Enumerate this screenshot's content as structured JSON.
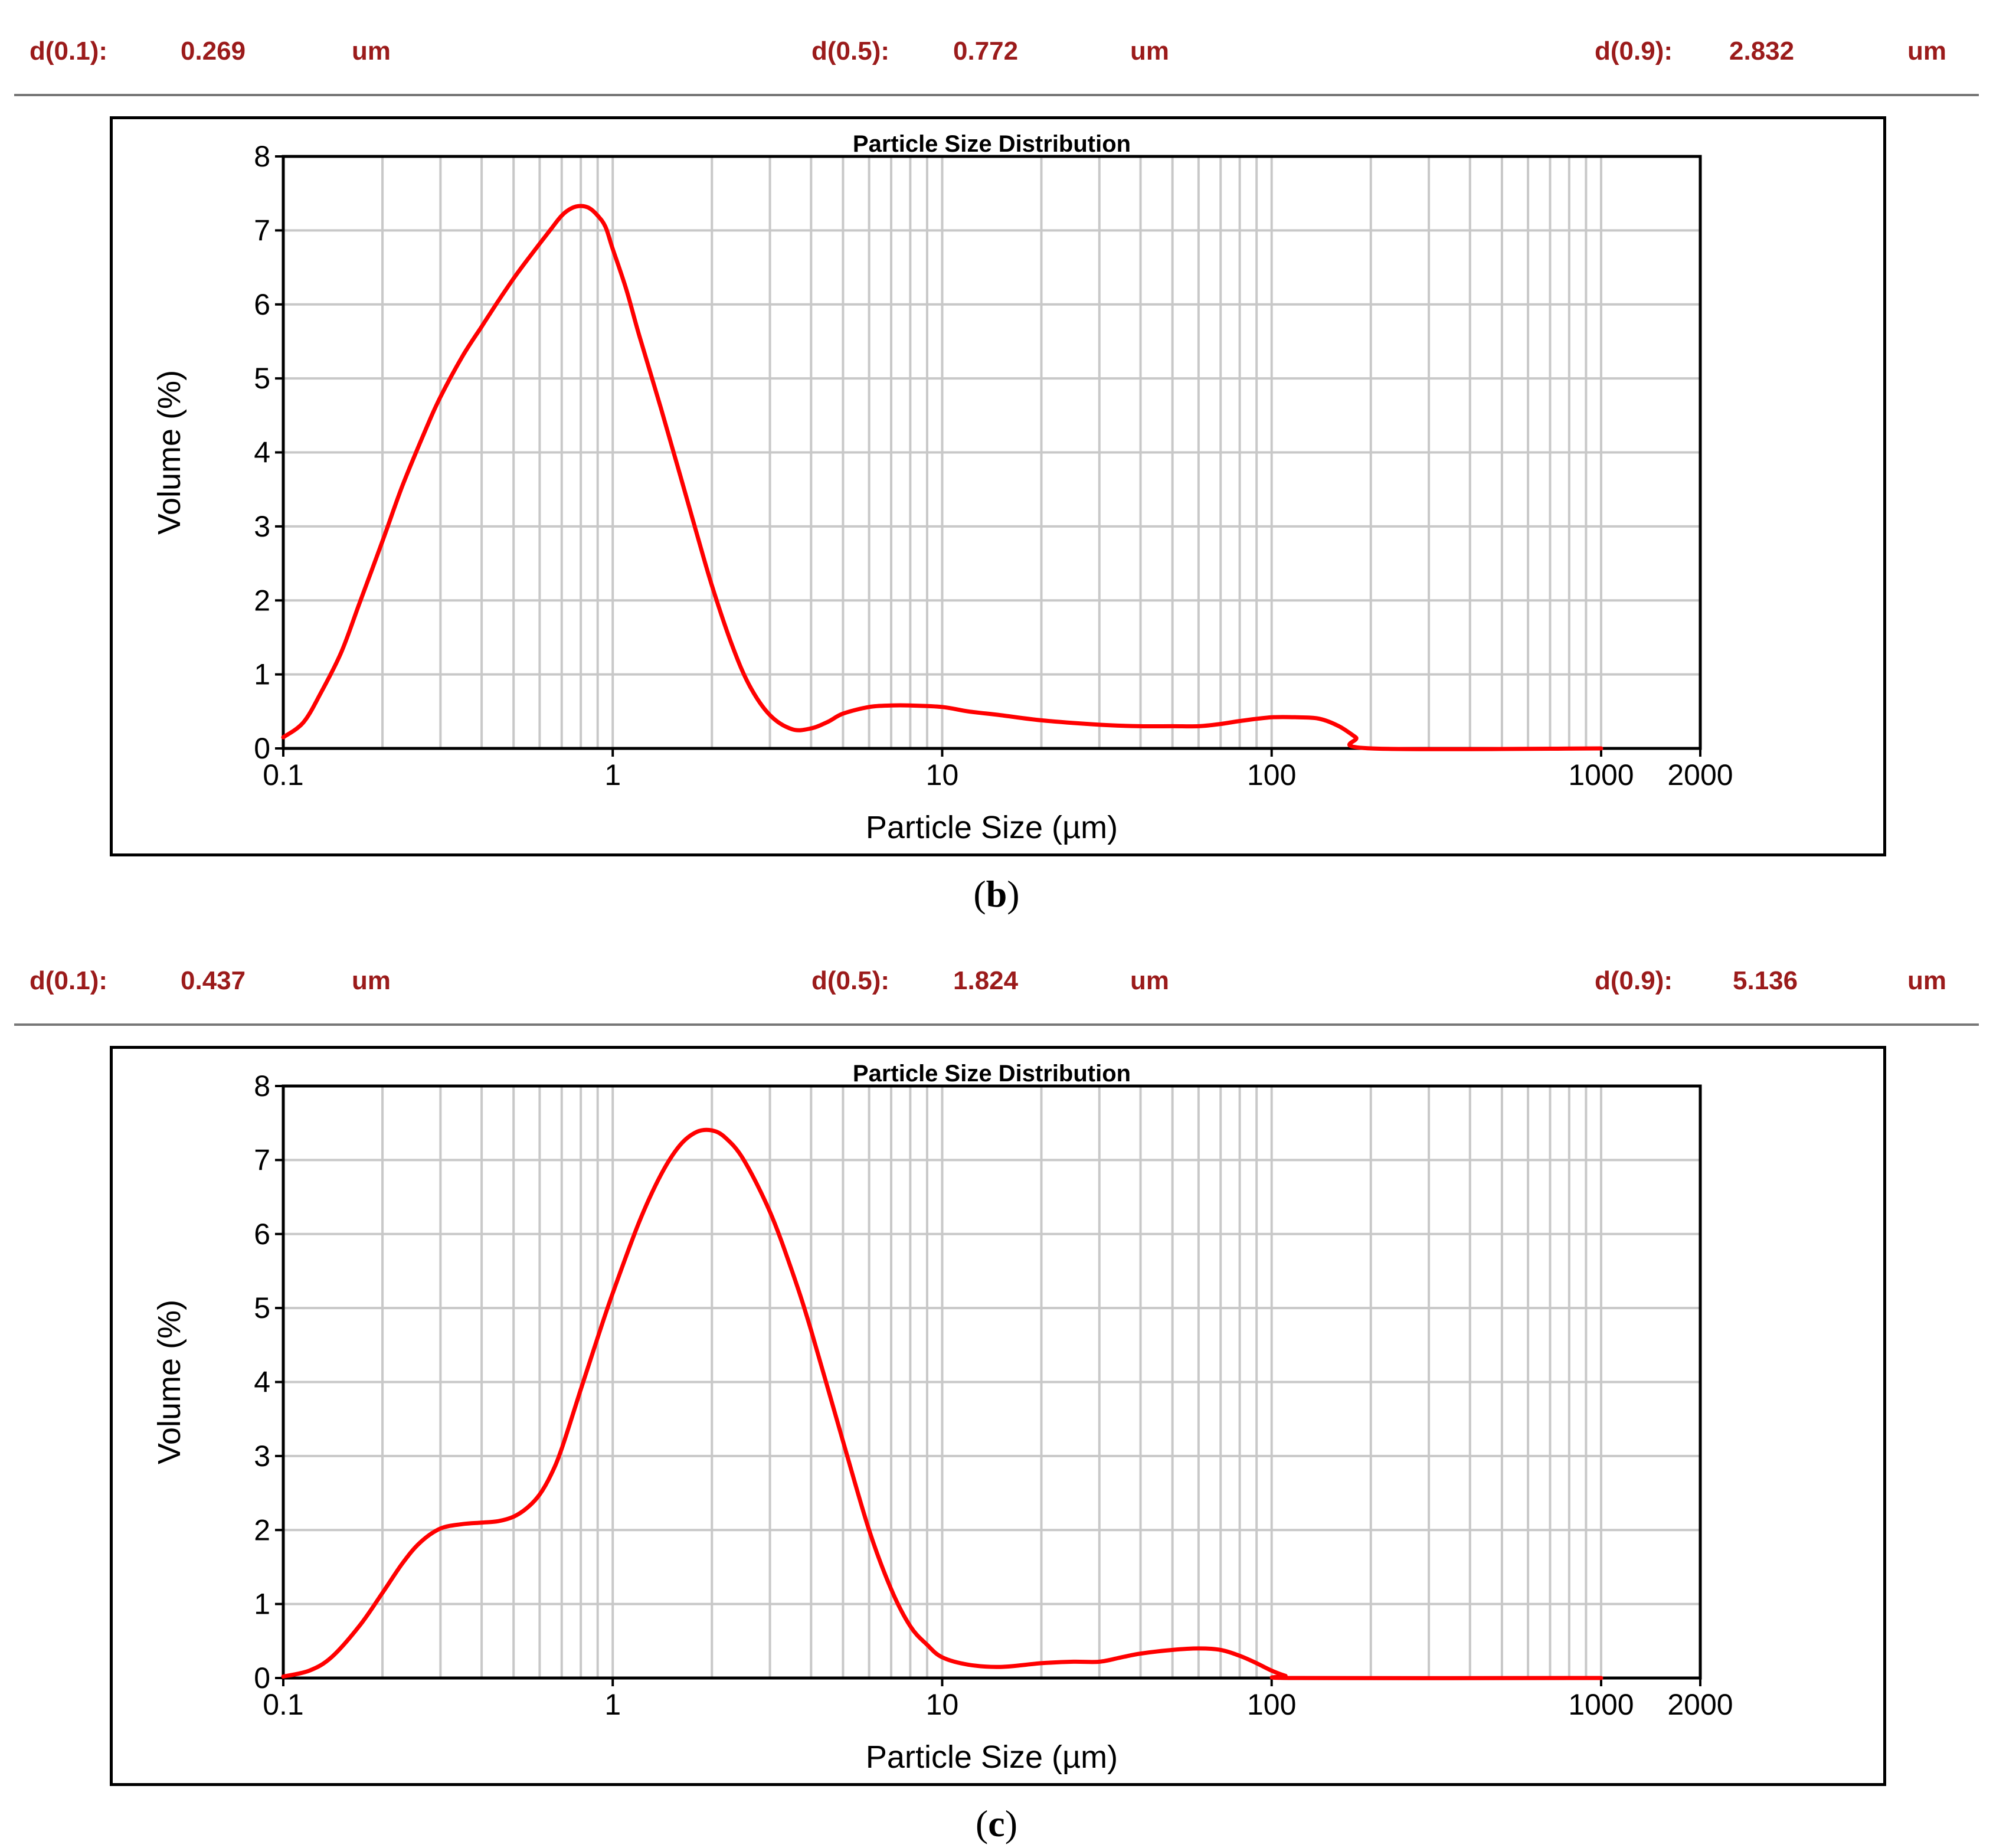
{
  "panels": [
    {
      "caption": {
        "open": "(",
        "letter": "b",
        "close": ")"
      },
      "stats": {
        "d10": {
          "label": "d(0.1):",
          "value": "0.269",
          "unit": "um"
        },
        "d50": {
          "label": "d(0.5):",
          "value": "0.772",
          "unit": "um"
        },
        "d90": {
          "label": "d(0.9):",
          "value": "2.832",
          "unit": "um"
        }
      }
    },
    {
      "caption": {
        "open": "(",
        "letter": "c",
        "close": ")"
      },
      "stats": {
        "d10": {
          "label": "d(0.1):",
          "value": "0.437",
          "unit": "um"
        },
        "d50": {
          "label": "d(0.5):",
          "value": "1.824",
          "unit": "um"
        },
        "d90": {
          "label": "d(0.9):",
          "value": "5.136",
          "unit": "um"
        }
      }
    }
  ],
  "colors": {
    "curve": "#ff0000",
    "stats_text": "#9b1b1b",
    "grid": "#c8c8c8",
    "axis": "#000000"
  },
  "chart_data": [
    {
      "type": "line",
      "title": "Particle Size Distribution",
      "xlabel": "Particle Size (µm)",
      "ylabel": "Volume (%)",
      "xscale": "log",
      "xlim": [
        0.1,
        2000
      ],
      "ylim": [
        0,
        8
      ],
      "x_ticks": [
        0.1,
        1,
        10,
        100,
        1000,
        2000
      ],
      "x_tick_labels": [
        "0.1",
        "1",
        "10",
        "100",
        "1000",
        "2000"
      ],
      "y_ticks": [
        0,
        1,
        2,
        3,
        4,
        5,
        6,
        7,
        8
      ],
      "y_tick_labels": [
        "0",
        "1",
        "2",
        "3",
        "4",
        "5",
        "6",
        "7",
        "8"
      ],
      "grid": true,
      "series": [
        {
          "name": "Volume",
          "x": [
            0.1,
            0.115,
            0.13,
            0.15,
            0.17,
            0.2,
            0.23,
            0.27,
            0.3,
            0.35,
            0.4,
            0.45,
            0.5,
            0.55,
            0.6,
            0.65,
            0.7,
            0.75,
            0.8,
            0.85,
            0.9,
            0.95,
            1.0,
            1.1,
            1.2,
            1.4,
            1.6,
            1.8,
            2.0,
            2.3,
            2.6,
            3.0,
            3.5,
            4.0,
            4.5,
            5.0,
            6.0,
            7.0,
            8.0,
            10.0,
            12.0,
            15.0,
            20.0,
            30.0,
            40.0,
            50.0,
            60.0,
            70.0,
            80.0,
            100.0,
            120.0,
            140.0,
            160.0,
            180.0,
            200.0,
            1000.0
          ],
          "y": [
            0.15,
            0.35,
            0.75,
            1.3,
            1.95,
            2.8,
            3.55,
            4.3,
            4.75,
            5.3,
            5.7,
            6.05,
            6.35,
            6.6,
            6.82,
            7.02,
            7.2,
            7.3,
            7.33,
            7.3,
            7.2,
            7.05,
            6.75,
            6.2,
            5.6,
            4.6,
            3.7,
            2.9,
            2.2,
            1.4,
            0.85,
            0.45,
            0.26,
            0.27,
            0.36,
            0.47,
            0.56,
            0.58,
            0.58,
            0.56,
            0.5,
            0.45,
            0.38,
            0.32,
            0.3,
            0.3,
            0.3,
            0.33,
            0.37,
            0.42,
            0.42,
            0.4,
            0.3,
            0.15,
            0.0,
            0.0
          ]
        }
      ]
    },
    {
      "type": "line",
      "title": "Particle Size Distribution",
      "xlabel": "Particle Size (µm)",
      "ylabel": "Volume (%)",
      "xscale": "log",
      "xlim": [
        0.1,
        2000
      ],
      "ylim": [
        0,
        8
      ],
      "x_ticks": [
        0.1,
        1,
        10,
        100,
        1000,
        2000
      ],
      "x_tick_labels": [
        "0.1",
        "1",
        "10",
        "100",
        "1000",
        "2000"
      ],
      "y_ticks": [
        0,
        1,
        2,
        3,
        4,
        5,
        6,
        7,
        8
      ],
      "y_tick_labels": [
        "0",
        "1",
        "2",
        "3",
        "4",
        "5",
        "6",
        "7",
        "8"
      ],
      "grid": true,
      "series": [
        {
          "name": "Volume",
          "x": [
            0.1,
            0.12,
            0.14,
            0.17,
            0.2,
            0.23,
            0.26,
            0.3,
            0.35,
            0.4,
            0.45,
            0.5,
            0.55,
            0.6,
            0.65,
            0.7,
            0.8,
            0.9,
            1.0,
            1.2,
            1.4,
            1.6,
            1.8,
            2.0,
            2.2,
            2.5,
            3.0,
            3.5,
            4.0,
            5.0,
            6.0,
            7.0,
            8.0,
            9.0,
            10.0,
            12.0,
            15.0,
            20.0,
            25.0,
            30.0,
            35.0,
            40.0,
            50.0,
            60.0,
            70.0,
            80.0,
            90.0,
            100.0,
            110.0,
            120.0,
            1000.0
          ],
          "y": [
            0.02,
            0.1,
            0.28,
            0.7,
            1.15,
            1.55,
            1.83,
            2.02,
            2.08,
            2.1,
            2.12,
            2.18,
            2.3,
            2.48,
            2.75,
            3.1,
            3.9,
            4.6,
            5.2,
            6.15,
            6.8,
            7.2,
            7.38,
            7.4,
            7.3,
            7.0,
            6.3,
            5.5,
            4.7,
            3.2,
            2.0,
            1.2,
            0.7,
            0.45,
            0.28,
            0.18,
            0.15,
            0.2,
            0.22,
            0.22,
            0.28,
            0.33,
            0.38,
            0.4,
            0.38,
            0.3,
            0.2,
            0.1,
            0.03,
            0.0,
            0.0
          ]
        }
      ]
    }
  ]
}
